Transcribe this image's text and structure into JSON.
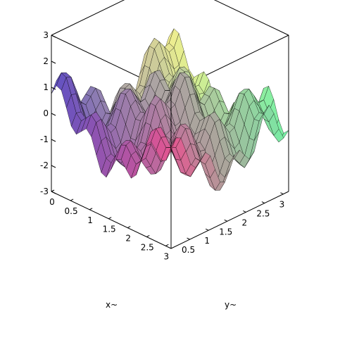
{
  "chart_data": {
    "type": "surface3d",
    "title": "",
    "xlabel": "x~",
    "ylabel": "y~",
    "zlabel": "",
    "xlim": [
      0,
      3.14159
    ],
    "ylim": [
      0,
      3.14159
    ],
    "zlim": [
      -3,
      3
    ],
    "x_ticks": [
      "0",
      "0.5",
      "1",
      "1.5",
      "2",
      "2.5",
      "3"
    ],
    "y_ticks": [
      "0.5",
      "1",
      "1.5",
      "2",
      "2.5",
      "3"
    ],
    "z_ticks": [
      "-3",
      "-2",
      "-1",
      "0",
      "1",
      "2",
      "3"
    ],
    "x_tick_values": [
      0,
      0.5,
      1,
      1.5,
      2,
      2.5,
      3
    ],
    "y_tick_values": [
      0.5,
      1,
      1.5,
      2,
      2.5,
      3
    ],
    "z_tick_values": [
      -3,
      -2,
      -1,
      0,
      1,
      2,
      3
    ],
    "surface": {
      "expression": "z = 0.9*cos(2x)*cos(2y) + 0.5*(sin(8x)+sin(8y)) - 1.4*exp(-12*((x-pi)^2+(y-pi)^2))",
      "grid_n": 24,
      "mesh_color": "#000000",
      "colormap": [
        "#5b4fc4",
        "#e9528f",
        "#f7f08d",
        "#72f2a5"
      ]
    },
    "grid": false,
    "legend": "none"
  }
}
